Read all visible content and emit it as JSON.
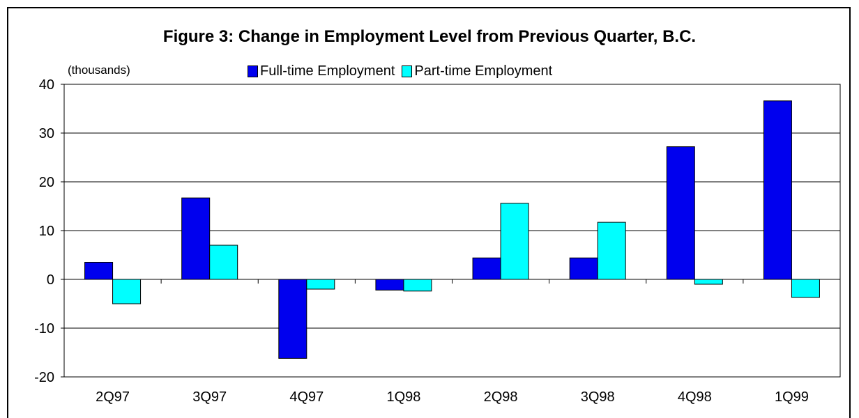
{
  "chart_data": {
    "type": "bar",
    "title": "Figure 3:  Change in Employment Level from Previous Quarter, B.C.",
    "unit_label": "(thousands)",
    "categories": [
      "2Q97",
      "3Q97",
      "4Q97",
      "1Q98",
      "2Q98",
      "3Q98",
      "4Q98",
      "1Q99"
    ],
    "series": [
      {
        "name": "Full-time Employment",
        "color": "#0000ee",
        "values": [
          3.5,
          16.7,
          -16.2,
          -2.2,
          4.4,
          4.4,
          27.2,
          36.6
        ]
      },
      {
        "name": "Part-time Employment",
        "color": "#00ffff",
        "values": [
          -5.0,
          7.0,
          -2.0,
          -2.4,
          15.6,
          11.7,
          -1.0,
          -3.7
        ]
      }
    ],
    "ylim": [
      -20,
      40
    ],
    "yticks": [
      -20,
      -10,
      0,
      10,
      20,
      30,
      40
    ],
    "grid": true,
    "legend": "top"
  }
}
